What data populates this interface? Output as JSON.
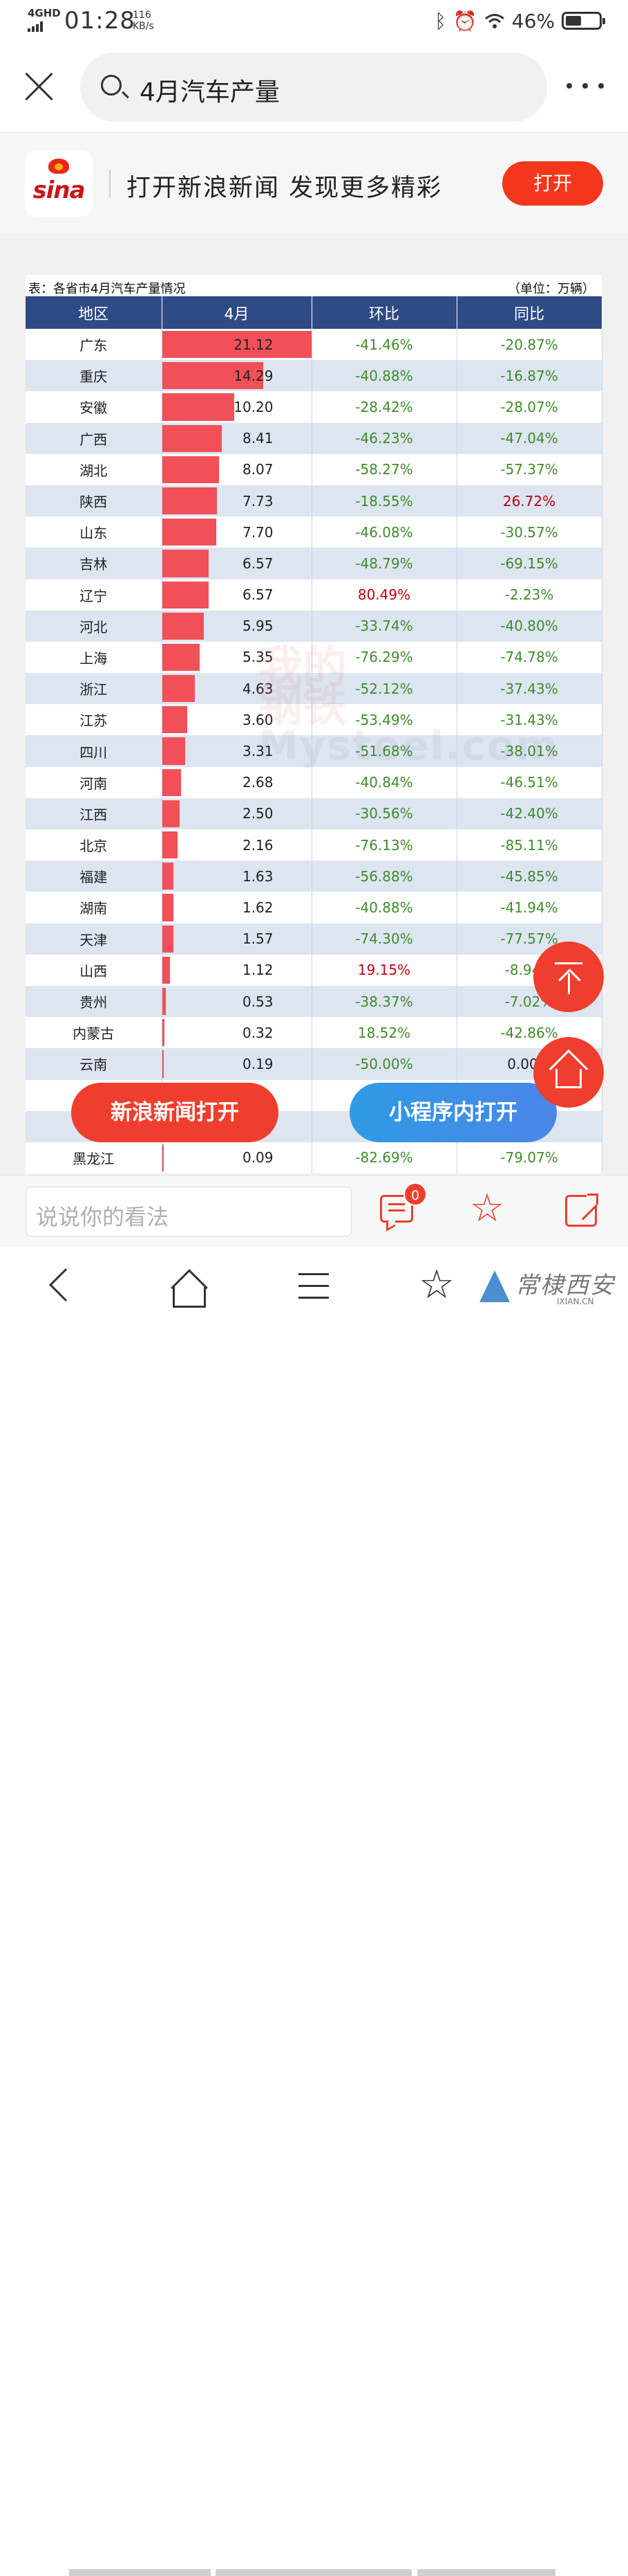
{
  "status": {
    "network": "4GHD",
    "time": "01:28",
    "speed_value": "116",
    "speed_unit": "KB/s",
    "battery": "46%"
  },
  "search": {
    "query": "4月汽车产量"
  },
  "banner": {
    "logo_text": "sina",
    "slogan": "打开新浪新闻 发现更多精彩",
    "open_label": "打开"
  },
  "table": {
    "caption": "表：各省市4月汽车产量情况",
    "unit": "（单位：万辆）",
    "headers": [
      "地区",
      "4月",
      "环比",
      "同比"
    ],
    "max_value": 21.12
  },
  "chart_data": {
    "type": "table",
    "columns": [
      "地区",
      "4月",
      "环比",
      "同比"
    ],
    "rows": [
      {
        "region": "广东",
        "april": 21.12,
        "april_text": "21.12",
        "mom": "-41.46%",
        "yoy": "-20.87%"
      },
      {
        "region": "重庆",
        "april": 14.29,
        "april_text": "14.29",
        "mom": "-40.88%",
        "yoy": "-16.87%"
      },
      {
        "region": "安徽",
        "april": 10.2,
        "april_text": "10.20",
        "mom": "-28.42%",
        "yoy": "-28.07%"
      },
      {
        "region": "广西",
        "april": 8.41,
        "april_text": "8.41",
        "mom": "-46.23%",
        "yoy": "-47.04%"
      },
      {
        "region": "湖北",
        "april": 8.07,
        "april_text": "8.07",
        "mom": "-58.27%",
        "yoy": "-57.37%"
      },
      {
        "region": "陕西",
        "april": 7.73,
        "april_text": "7.73",
        "mom": "-18.55%",
        "yoy": "26.72%"
      },
      {
        "region": "山东",
        "april": 7.7,
        "april_text": "7.70",
        "mom": "-46.08%",
        "yoy": "-30.57%"
      },
      {
        "region": "吉林",
        "april": 6.57,
        "april_text": "6.57",
        "mom": "-48.79%",
        "yoy": "-69.15%"
      },
      {
        "region": "辽宁",
        "april": 6.57,
        "april_text": "6.57",
        "mom": "80.49%",
        "yoy": "-2.23%"
      },
      {
        "region": "河北",
        "april": 5.95,
        "april_text": "5.95",
        "mom": "-33.74%",
        "yoy": "-40.80%"
      },
      {
        "region": "上海",
        "april": 5.35,
        "april_text": "5.35",
        "mom": "-76.29%",
        "yoy": "-74.78%"
      },
      {
        "region": "浙江",
        "april": 4.63,
        "april_text": "4.63",
        "mom": "-52.12%",
        "yoy": "-37.43%"
      },
      {
        "region": "江苏",
        "april": 3.6,
        "april_text": "3.60",
        "mom": "-53.49%",
        "yoy": "-31.43%"
      },
      {
        "region": "四川",
        "april": 3.31,
        "april_text": "3.31",
        "mom": "-51.68%",
        "yoy": "-38.01%"
      },
      {
        "region": "河南",
        "april": 2.68,
        "april_text": "2.68",
        "mom": "-40.84%",
        "yoy": "-46.51%"
      },
      {
        "region": "江西",
        "april": 2.5,
        "april_text": "2.50",
        "mom": "-30.56%",
        "yoy": "-42.40%"
      },
      {
        "region": "北京",
        "april": 2.16,
        "april_text": "2.16",
        "mom": "-76.13%",
        "yoy": "-85.11%"
      },
      {
        "region": "福建",
        "april": 1.63,
        "april_text": "1.63",
        "mom": "-56.88%",
        "yoy": "-45.85%"
      },
      {
        "region": "湖南",
        "april": 1.62,
        "april_text": "1.62",
        "mom": "-40.88%",
        "yoy": "-41.94%"
      },
      {
        "region": "天津",
        "april": 1.57,
        "april_text": "1.57",
        "mom": "-74.30%",
        "yoy": "-77.57%"
      },
      {
        "region": "山西",
        "april": 1.12,
        "april_text": "1.12",
        "mom": "19.15%",
        "yoy": "-8.94%"
      },
      {
        "region": "贵州",
        "april": 0.53,
        "april_text": "0.53",
        "mom": "-38.37%",
        "yoy": "-7.02%"
      },
      {
        "region": "内蒙古",
        "april": 0.32,
        "april_text": "0.32",
        "mom": "18.52%",
        "yoy": "-42.86%"
      },
      {
        "region": "云南",
        "april": 0.19,
        "april_text": "0.19",
        "mom": "-50.00%",
        "yoy": "0.00%"
      },
      {
        "region": "",
        "april": null,
        "april_text": "",
        "mom": "",
        "yoy": ""
      },
      {
        "region": "",
        "april": null,
        "april_text": "",
        "mom": "",
        "yoy": ""
      },
      {
        "region": "黑龙江",
        "april": 0.09,
        "april_text": "0.09",
        "mom": "-82.69%",
        "yoy": "-79.07%"
      }
    ]
  },
  "watermark": {
    "line1": "我的",
    "line2": "钢铁",
    "line3": "Mysteel.com"
  },
  "floating": {
    "open_in_app": "新浪新闻打开",
    "open_in_miniprogram": "小程序内打开"
  },
  "comment": {
    "placeholder": "说说你的看法",
    "badge_count": "0"
  },
  "brand_watermark": {
    "name": "常棣西安",
    "domain": "IXIAN.CN"
  },
  "colors": {
    "header": "#2e4b86",
    "bar": "#f25059",
    "negative": "#3f8c2a",
    "positive": "#c00012",
    "accent": "#ef3e2d"
  }
}
